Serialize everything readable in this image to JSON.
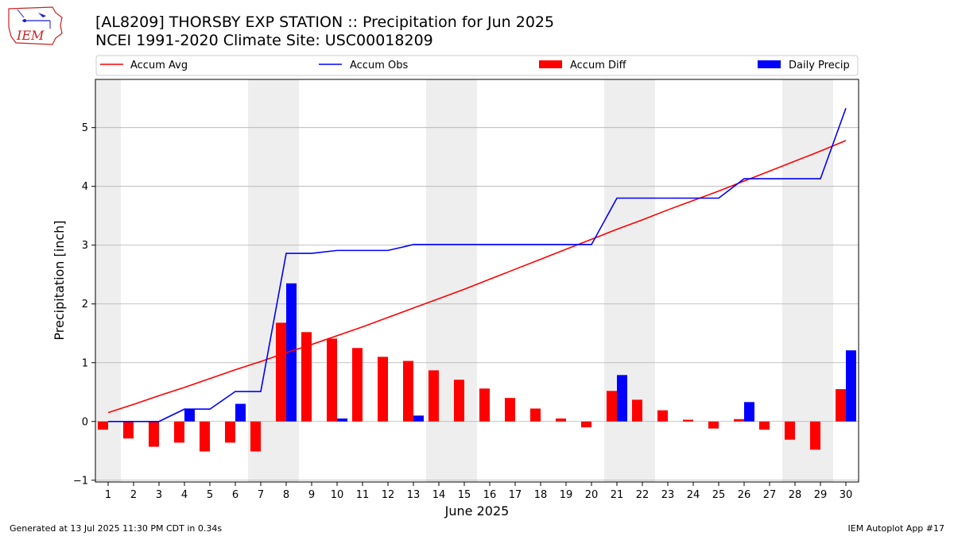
{
  "header": {
    "title_line1": "[AL8209] THORSBY EXP STATION :: Precipitation for Jun 2025",
    "title_line2": "NCEI 1991-2020 Climate Site: USC00018209",
    "logo_text": "IEM"
  },
  "footer": {
    "generated": "Generated at 13 Jul 2025 11:30 PM CDT in 0.34s",
    "app": "IEM Autoplot App #17"
  },
  "colors": {
    "accum_avg": "#ff0000",
    "accum_obs": "#0000ff",
    "accum_diff": "#ff0000",
    "daily_precip": "#0000ff",
    "weekend_band": "#eeeeee",
    "grid": "#b0b0b0"
  },
  "chart_data": {
    "type": "bar",
    "xlabel": "June 2025",
    "ylabel": "Precipitation [inch]",
    "ylim": [
      -1.03,
      5.82
    ],
    "yticks": [
      -1,
      0,
      1,
      2,
      3,
      4,
      5
    ],
    "grid": "horizontal",
    "legend_placement": "top (above plot)",
    "days": [
      1,
      2,
      3,
      4,
      5,
      6,
      7,
      8,
      9,
      10,
      11,
      12,
      13,
      14,
      15,
      16,
      17,
      18,
      19,
      20,
      21,
      22,
      23,
      24,
      25,
      26,
      27,
      28,
      29,
      30
    ],
    "weekend_days": [
      1,
      7,
      8,
      14,
      15,
      21,
      22,
      28,
      29
    ],
    "series": [
      {
        "name": "Accum Avg",
        "kind": "line",
        "values": [
          0.15,
          0.29,
          0.44,
          0.58,
          0.73,
          0.88,
          1.02,
          1.17,
          1.31,
          1.46,
          1.61,
          1.77,
          1.93,
          2.09,
          2.25,
          2.42,
          2.59,
          2.76,
          2.93,
          3.1,
          3.27,
          3.43,
          3.6,
          3.76,
          3.92,
          4.09,
          4.26,
          4.43,
          4.6,
          4.78
        ]
      },
      {
        "name": "Accum Obs",
        "kind": "line",
        "values": [
          0.0,
          0.0,
          0.0,
          0.21,
          0.21,
          0.51,
          0.51,
          2.86,
          2.86,
          2.91,
          2.91,
          2.91,
          3.01,
          3.01,
          3.01,
          3.01,
          3.01,
          3.01,
          3.01,
          3.01,
          3.8,
          3.8,
          3.8,
          3.8,
          3.8,
          4.13,
          4.13,
          4.13,
          4.13,
          5.33
        ]
      },
      {
        "name": "Accum Diff",
        "kind": "bar",
        "values": [
          -0.14,
          -0.29,
          -0.43,
          -0.36,
          -0.51,
          -0.36,
          -0.51,
          1.68,
          1.52,
          1.41,
          1.25,
          1.1,
          1.03,
          0.87,
          0.71,
          0.56,
          0.4,
          0.22,
          0.05,
          -0.1,
          0.52,
          0.37,
          0.19,
          0.03,
          -0.12,
          0.04,
          -0.14,
          -0.31,
          -0.48,
          0.55
        ]
      },
      {
        "name": "Daily Precip",
        "kind": "bar",
        "values": [
          0,
          0,
          0,
          0.21,
          0,
          0.3,
          0,
          2.35,
          0,
          0.05,
          0,
          0,
          0.1,
          0,
          0,
          0,
          0,
          0,
          0,
          0,
          0.79,
          0,
          0,
          0,
          0,
          0.33,
          0,
          0,
          0,
          1.21
        ]
      }
    ]
  }
}
